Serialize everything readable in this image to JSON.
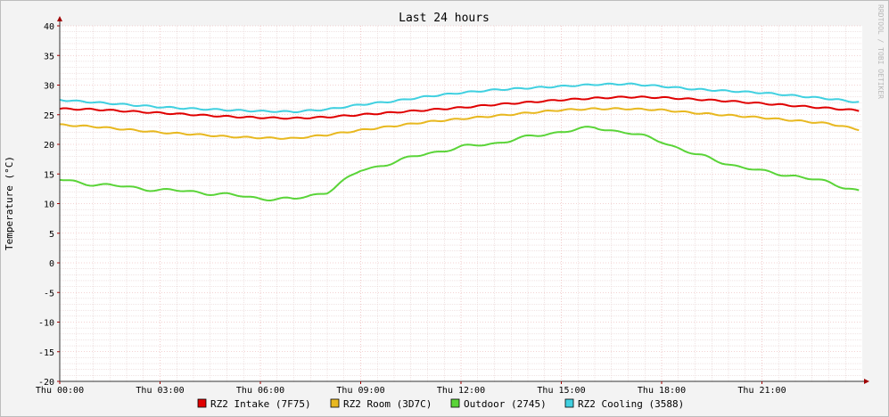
{
  "chart_data": {
    "type": "line",
    "title": "Last 24 hours",
    "ylabel": "Temperature (°C)",
    "xlabel": "",
    "watermark": "RRDTOOL / TOBI OETIKER",
    "ylim": [
      -20,
      40
    ],
    "xlim": [
      0,
      24
    ],
    "y_ticks": [
      40,
      35,
      30,
      25,
      20,
      15,
      10,
      5,
      0,
      -5,
      -10,
      -15,
      -20
    ],
    "x_ticks": [
      {
        "x": 0,
        "label": "Thu 00:00"
      },
      {
        "x": 3,
        "label": "Thu 03:00"
      },
      {
        "x": 6,
        "label": "Thu 06:00"
      },
      {
        "x": 9,
        "label": "Thu 09:00"
      },
      {
        "x": 12,
        "label": "Thu 12:00"
      },
      {
        "x": 15,
        "label": "Thu 15:00"
      },
      {
        "x": 18,
        "label": "Thu 18:00"
      },
      {
        "x": 21,
        "label": "Thu 21:00"
      }
    ],
    "grid": true,
    "legend_position": "bottom",
    "x_hours": [
      0,
      1,
      2,
      3,
      4,
      5,
      6,
      7,
      8,
      9,
      10,
      11,
      12,
      13,
      14,
      15,
      16,
      17,
      18,
      19,
      20,
      21,
      22,
      23,
      23.9
    ],
    "series": [
      {
        "name": "RZ2 Intake (7F75)",
        "color": "#e00000",
        "values": [
          26.0,
          25.9,
          25.6,
          25.3,
          25.0,
          24.7,
          24.5,
          24.4,
          24.6,
          25.0,
          25.4,
          25.8,
          26.2,
          26.7,
          27.1,
          27.5,
          27.8,
          28.0,
          27.9,
          27.6,
          27.3,
          26.9,
          26.5,
          26.1,
          25.7
        ]
      },
      {
        "name": "RZ2 Room (3D7C)",
        "color": "#e8b820",
        "values": [
          23.3,
          23.0,
          22.5,
          22.0,
          21.7,
          21.3,
          21.1,
          21.0,
          21.6,
          22.4,
          23.1,
          23.8,
          24.3,
          24.8,
          25.3,
          25.8,
          26.0,
          26.0,
          25.8,
          25.3,
          24.9,
          24.5,
          24.0,
          23.5,
          22.5
        ]
      },
      {
        "name": "Outdoor (2745)",
        "color": "#5ad438",
        "values": [
          14.0,
          13.3,
          12.8,
          12.3,
          12.0,
          11.5,
          10.9,
          10.7,
          12.0,
          15.6,
          17.0,
          18.5,
          19.5,
          20.2,
          21.2,
          22.2,
          22.8,
          22.0,
          20.5,
          18.3,
          16.7,
          15.4,
          14.7,
          13.5,
          12.2
        ]
      },
      {
        "name": "RZ2 Cooling (3588)",
        "color": "#40d0e0",
        "values": [
          27.5,
          27.1,
          26.7,
          26.3,
          26.0,
          25.8,
          25.6,
          25.5,
          25.9,
          26.7,
          27.3,
          28.1,
          28.7,
          29.2,
          29.5,
          29.8,
          30.1,
          30.2,
          29.8,
          29.3,
          29.0,
          28.7,
          28.2,
          27.7,
          27.1
        ]
      }
    ]
  }
}
